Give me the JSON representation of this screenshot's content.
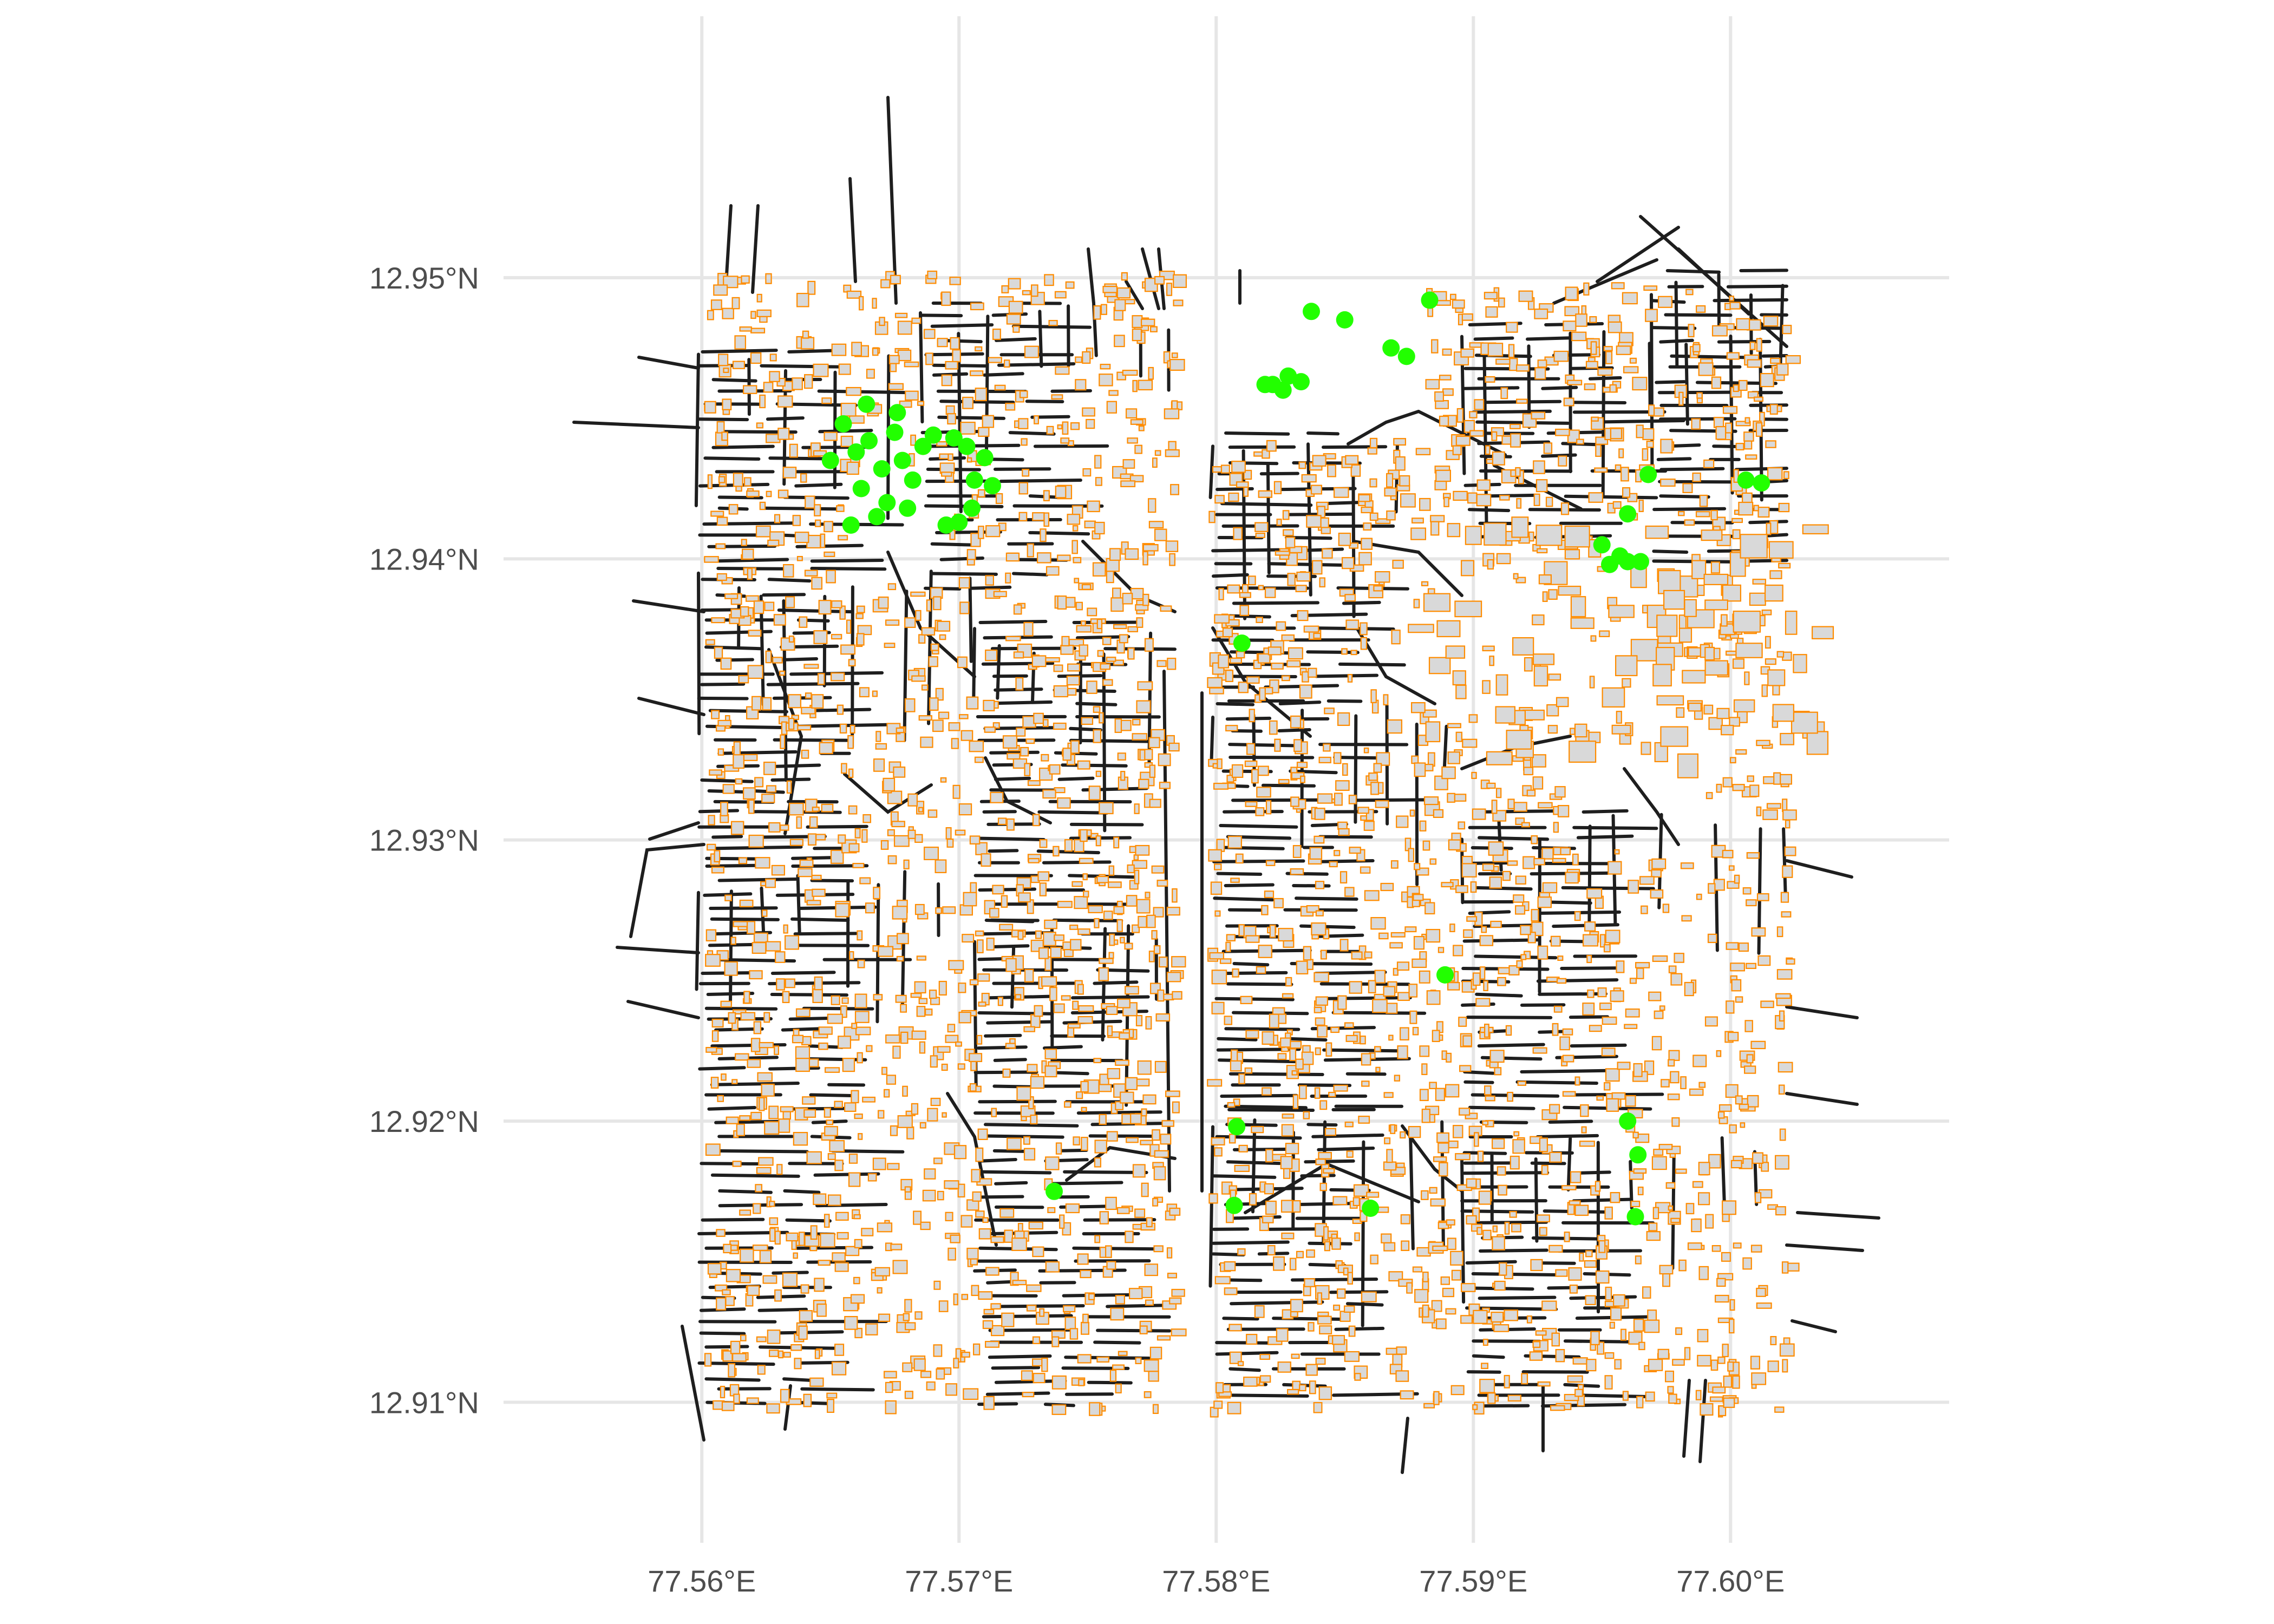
{
  "chart_data": {
    "type": "map",
    "title": "",
    "xlabel": "",
    "ylabel": "",
    "xlim": [
      77.5525,
      77.6085
    ],
    "ylim": [
      12.905,
      12.9593
    ],
    "grid": true,
    "legend": "none",
    "colors": {
      "road": "#1e1e1e",
      "building_outline": "#ff8c00",
      "building_fill": "#d9d9d9",
      "poi": "#22ff00",
      "grid": "#e6e6e6",
      "tick_text": "#4d4d4d"
    },
    "x_ticks": [
      {
        "value": 77.56,
        "label": "77.56°E"
      },
      {
        "value": 77.57,
        "label": "77.57°E"
      },
      {
        "value": 77.58,
        "label": "77.58°E"
      },
      {
        "value": 77.59,
        "label": "77.59°E"
      },
      {
        "value": 77.6,
        "label": "77.60°E"
      }
    ],
    "y_ticks": [
      {
        "value": 12.91,
        "label": "12.91°N"
      },
      {
        "value": 12.92,
        "label": "12.92°N"
      },
      {
        "value": 12.93,
        "label": "12.93°N"
      },
      {
        "value": 12.94,
        "label": "12.94°N"
      },
      {
        "value": 12.95,
        "label": "12.95°N"
      }
    ],
    "layers": [
      "roads",
      "buildings",
      "points"
    ],
    "points": [
      [
        77.5655,
        12.9448
      ],
      [
        77.566,
        12.9438
      ],
      [
        77.5665,
        12.9442
      ],
      [
        77.567,
        12.9432
      ],
      [
        77.5675,
        12.9445
      ],
      [
        77.5662,
        12.9425
      ],
      [
        77.5668,
        12.9415
      ],
      [
        77.5658,
        12.9412
      ],
      [
        77.5672,
        12.942
      ],
      [
        77.5678,
        12.9435
      ],
      [
        77.5682,
        12.9428
      ],
      [
        77.5686,
        12.944
      ],
      [
        77.5676,
        12.9452
      ],
      [
        77.565,
        12.9435
      ],
      [
        77.5664,
        12.9455
      ],
      [
        77.568,
        12.9418
      ],
      [
        77.569,
        12.9444
      ],
      [
        77.5698,
        12.9443
      ],
      [
        77.5703,
        12.944
      ],
      [
        77.5706,
        12.9428
      ],
      [
        77.571,
        12.9436
      ],
      [
        77.5713,
        12.9426
      ],
      [
        77.57,
        12.9413
      ],
      [
        77.5695,
        12.9412
      ],
      [
        77.5705,
        12.9418
      ],
      [
        77.5837,
        12.9488
      ],
      [
        77.585,
        12.9485
      ],
      [
        77.5883,
        12.9492
      ],
      [
        77.5868,
        12.9475
      ],
      [
        77.5874,
        12.9472
      ],
      [
        77.5822,
        12.9462
      ],
      [
        77.5828,
        12.9465
      ],
      [
        77.5833,
        12.9463
      ],
      [
        77.5826,
        12.946
      ],
      [
        77.5819,
        12.9462
      ],
      [
        77.5968,
        12.943
      ],
      [
        77.596,
        12.9416
      ],
      [
        77.6006,
        12.9428
      ],
      [
        77.6012,
        12.9427
      ],
      [
        77.595,
        12.9405
      ],
      [
        77.5953,
        12.9398
      ],
      [
        77.596,
        12.9399
      ],
      [
        77.5965,
        12.9399
      ],
      [
        77.5957,
        12.9401
      ],
      [
        77.581,
        12.937
      ],
      [
        77.5889,
        12.9252
      ],
      [
        77.5808,
        12.9198
      ],
      [
        77.5737,
        12.9175
      ],
      [
        77.5807,
        12.917
      ],
      [
        77.586,
        12.9169
      ],
      [
        77.596,
        12.92
      ],
      [
        77.5964,
        12.9188
      ],
      [
        77.5963,
        12.9166
      ]
    ]
  }
}
